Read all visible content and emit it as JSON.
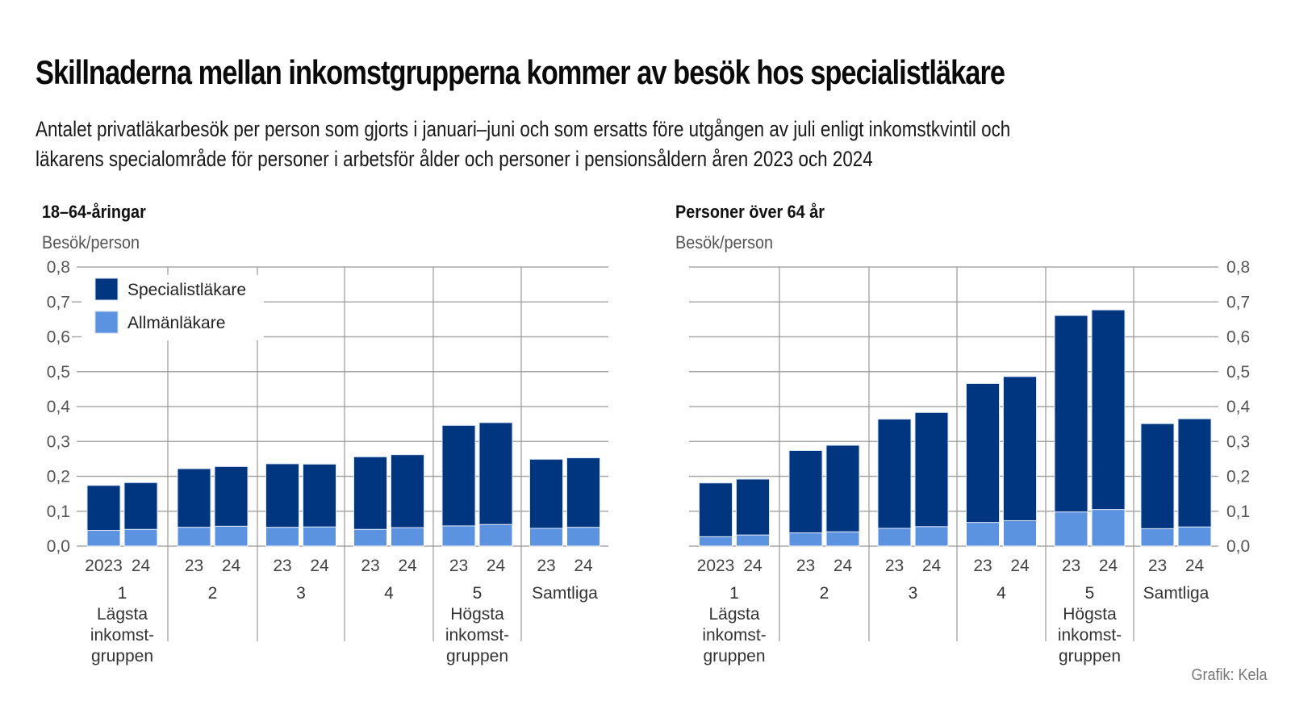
{
  "header": {
    "title": "Skillnaderna mellan inkomstgrupperna kommer av besök hos specialistläkare",
    "subtitle_lines": [
      "Antalet privatläkarbesök per person som gjorts i januari–juni och som ersatts före utgången av juli enligt inkomstkvintil och",
      "läkarens specialområde för personer i arbetsför ålder och personer i pensionsåldern åren 2023 och 2024"
    ]
  },
  "footer": {
    "credit": "Grafik: Kela"
  },
  "colors": {
    "specialist": "#003580",
    "general": "#5b93e1",
    "grid": "#a8a8a8",
    "separator": "#999999"
  },
  "chart_data": [
    {
      "type": "bar",
      "stacked": true,
      "title": "18–64-åringar",
      "ylabel": "Besök/person",
      "ylim": [
        0,
        0.8
      ],
      "yticks": [
        "0,0",
        "0,1",
        "0,2",
        "0,3",
        "0,4",
        "0,5",
        "0,6",
        "0,7",
        "0,8"
      ],
      "y_axis_side": "left",
      "legend_placement": "top-left",
      "grid": true,
      "legend": [
        "Specialistläkare",
        "Allmänläkare"
      ],
      "groups": [
        {
          "lines": [
            "1",
            "Lägsta",
            "inkomst-",
            "gruppen"
          ],
          "years": [
            "2023",
            "24"
          ]
        },
        {
          "lines": [
            "2"
          ],
          "years": [
            "23",
            "24"
          ]
        },
        {
          "lines": [
            "3"
          ],
          "years": [
            "23",
            "24"
          ]
        },
        {
          "lines": [
            "4"
          ],
          "years": [
            "23",
            "24"
          ]
        },
        {
          "lines": [
            "5",
            "Högsta",
            "inkomst-",
            "gruppen"
          ],
          "years": [
            "23",
            "24"
          ]
        },
        {
          "lines": [
            "Samtliga"
          ],
          "years": [
            "23",
            "24"
          ]
        }
      ],
      "series": [
        {
          "name": "Allmänläkare",
          "values": [
            [
              0.045,
              0.048
            ],
            [
              0.054,
              0.057
            ],
            [
              0.054,
              0.055
            ],
            [
              0.048,
              0.053
            ],
            [
              0.058,
              0.062
            ],
            [
              0.051,
              0.054
            ]
          ]
        },
        {
          "name": "Specialistläkare",
          "values": [
            [
              0.129,
              0.134
            ],
            [
              0.168,
              0.171
            ],
            [
              0.182,
              0.18
            ],
            [
              0.208,
              0.209
            ],
            [
              0.288,
              0.292
            ],
            [
              0.198,
              0.199
            ]
          ]
        }
      ],
      "totals": [
        [
          0.174,
          0.182
        ],
        [
          0.222,
          0.228
        ],
        [
          0.236,
          0.235
        ],
        [
          0.256,
          0.262
        ],
        [
          0.346,
          0.354
        ],
        [
          0.249,
          0.253
        ]
      ]
    },
    {
      "type": "bar",
      "stacked": true,
      "title": "Personer över 64 år",
      "ylabel": "Besök/person",
      "ylim": [
        0,
        0.8
      ],
      "yticks": [
        "0,0",
        "0,1",
        "0,2",
        "0,3",
        "0,4",
        "0,5",
        "0,6",
        "0,7",
        "0,8"
      ],
      "y_axis_side": "right",
      "grid": true,
      "groups": [
        {
          "lines": [
            "1",
            "Lägsta",
            "inkomst-",
            "gruppen"
          ],
          "years": [
            "2023",
            "24"
          ]
        },
        {
          "lines": [
            "2"
          ],
          "years": [
            "23",
            "24"
          ]
        },
        {
          "lines": [
            "3"
          ],
          "years": [
            "23",
            "24"
          ]
        },
        {
          "lines": [
            "4"
          ],
          "years": [
            "23",
            "24"
          ]
        },
        {
          "lines": [
            "5",
            "Högsta",
            "inkomst-",
            "gruppen"
          ],
          "years": [
            "23",
            "24"
          ]
        },
        {
          "lines": [
            "Samtliga"
          ],
          "years": [
            "23",
            "24"
          ]
        }
      ],
      "series": [
        {
          "name": "Allmänläkare",
          "values": [
            [
              0.027,
              0.032
            ],
            [
              0.038,
              0.041
            ],
            [
              0.051,
              0.056
            ],
            [
              0.068,
              0.073
            ],
            [
              0.098,
              0.105
            ],
            [
              0.05,
              0.055
            ]
          ]
        },
        {
          "name": "Specialistläkare",
          "values": [
            [
              0.154,
              0.16
            ],
            [
              0.236,
              0.248
            ],
            [
              0.313,
              0.327
            ],
            [
              0.398,
              0.413
            ],
            [
              0.563,
              0.572
            ],
            [
              0.301,
              0.31
            ]
          ]
        }
      ],
      "totals": [
        [
          0.181,
          0.192
        ],
        [
          0.274,
          0.289
        ],
        [
          0.364,
          0.383
        ],
        [
          0.466,
          0.486
        ],
        [
          0.661,
          0.677
        ],
        [
          0.351,
          0.365
        ]
      ]
    }
  ]
}
